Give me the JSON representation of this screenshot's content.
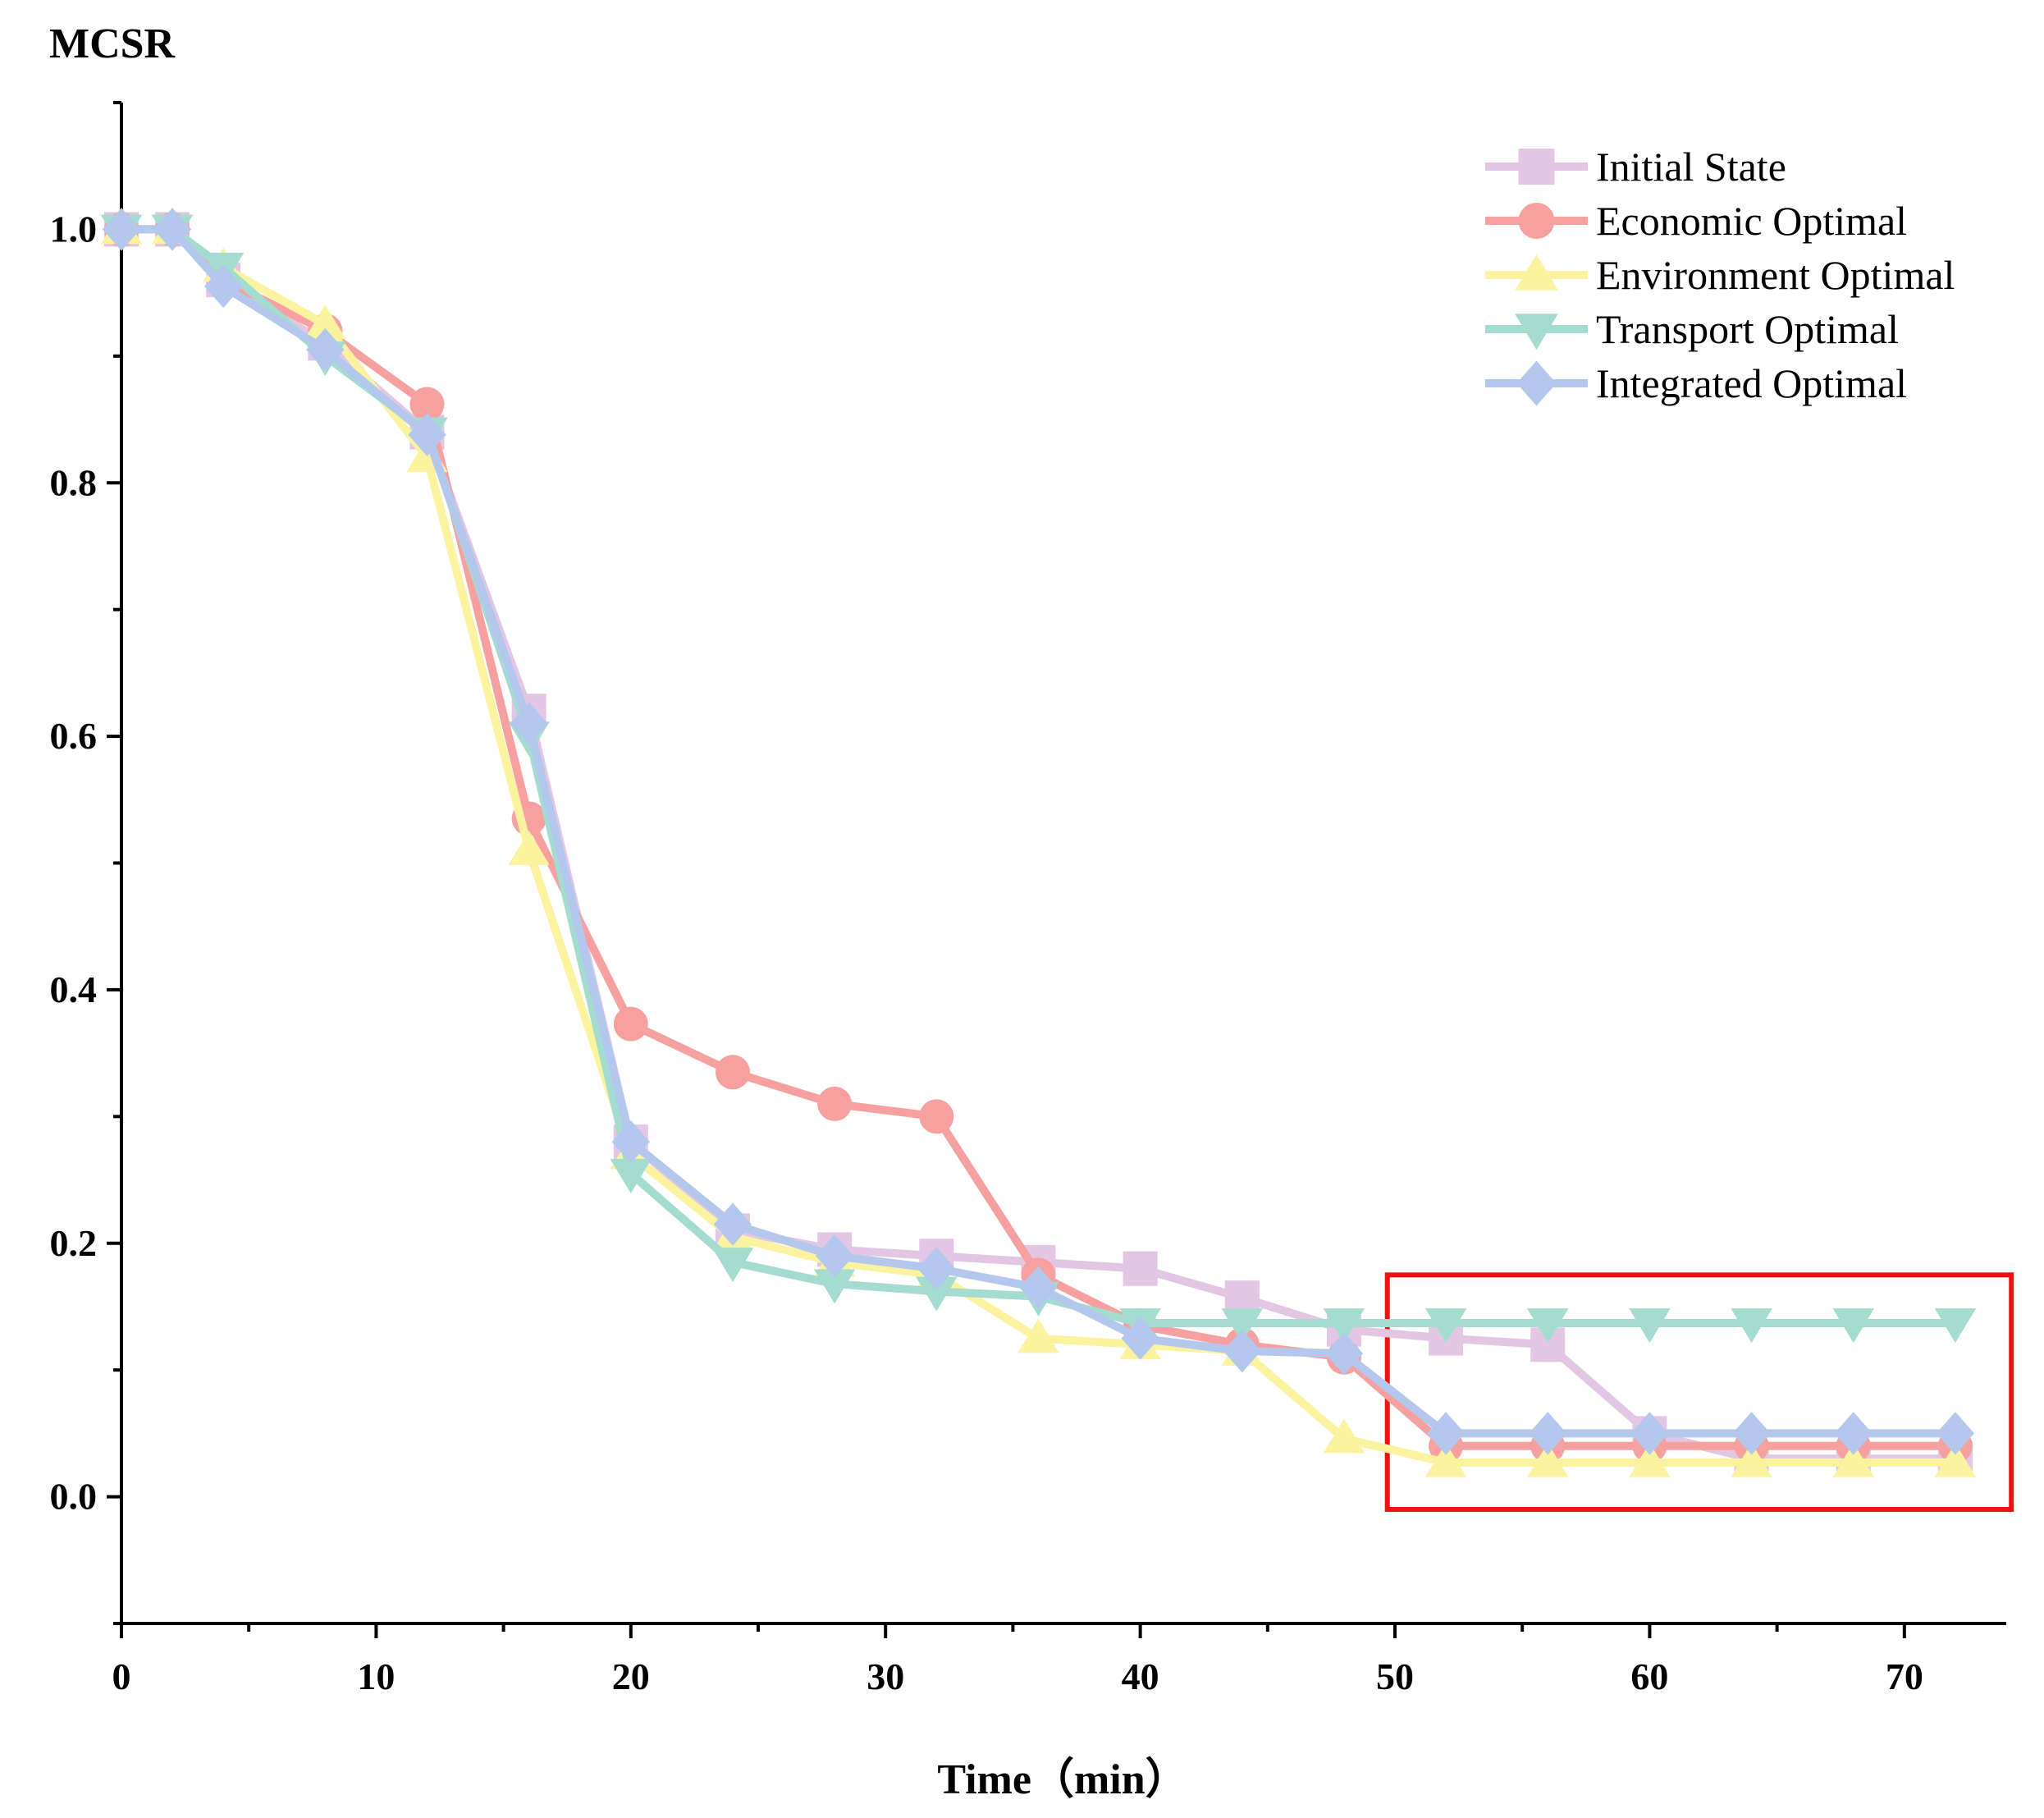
{
  "chart_data": {
    "type": "line",
    "ylabel": "MCSR",
    "xlabel": "Time（min）",
    "xlim": [
      0,
      74
    ],
    "ylim": [
      -0.1,
      1.1
    ],
    "xticks": [
      0,
      10,
      20,
      30,
      40,
      50,
      60,
      70
    ],
    "yticks": [
      0.0,
      0.2,
      0.4,
      0.6,
      0.8,
      1.0
    ],
    "xtick_labels": [
      "0",
      "10",
      "20",
      "30",
      "40",
      "50",
      "60",
      "70"
    ],
    "ytick_labels": [
      "0.0",
      "0.2",
      "0.4",
      "0.6",
      "0.8",
      "1.0"
    ],
    "x": [
      0,
      2,
      4,
      8,
      12,
      16,
      20,
      24,
      28,
      32,
      36,
      40,
      44,
      48,
      52,
      56,
      60,
      64,
      68,
      72
    ],
    "legend_position": "top-right",
    "highlight_box": {
      "x_range": [
        49.7,
        74.2
      ],
      "y_range": [
        -0.01,
        0.175
      ],
      "color": "#ee1111"
    },
    "series": [
      {
        "name": "Initial State",
        "color": "#e3c6e3",
        "marker": "square",
        "values": [
          1.0,
          1.0,
          0.96,
          0.91,
          0.84,
          0.62,
          0.28,
          0.21,
          0.195,
          0.19,
          0.185,
          0.18,
          0.157,
          0.132,
          0.125,
          0.12,
          0.05,
          0.03,
          0.03,
          0.03
        ]
      },
      {
        "name": "Economic Optimal",
        "color": "#f7a0a0",
        "marker": "circle",
        "values": [
          1.0,
          1.0,
          0.96,
          0.92,
          0.862,
          0.535,
          0.373,
          0.335,
          0.31,
          0.3,
          0.175,
          0.135,
          0.12,
          0.11,
          0.04,
          0.04,
          0.04,
          0.04,
          0.04,
          0.04
        ]
      },
      {
        "name": "Environment Optimal",
        "color": "#fbf3a0",
        "marker": "triangle-up",
        "values": [
          1.0,
          1.0,
          0.97,
          0.925,
          0.82,
          0.51,
          0.27,
          0.205,
          0.185,
          0.175,
          0.125,
          0.12,
          0.115,
          0.046,
          0.027,
          0.027,
          0.027,
          0.027,
          0.027,
          0.027
        ]
      },
      {
        "name": "Transport Optimal",
        "color": "#a4dccf",
        "marker": "triangle-down",
        "values": [
          1.0,
          1.0,
          0.97,
          0.9,
          0.84,
          0.6,
          0.255,
          0.185,
          0.168,
          0.162,
          0.158,
          0.137,
          0.137,
          0.137,
          0.137,
          0.137,
          0.137,
          0.137,
          0.137,
          0.137
        ]
      },
      {
        "name": "Integrated Optimal",
        "color": "#b4c8ee",
        "marker": "diamond",
        "values": [
          1.0,
          1.0,
          0.955,
          0.905,
          0.838,
          0.61,
          0.28,
          0.215,
          0.19,
          0.18,
          0.165,
          0.125,
          0.115,
          0.113,
          0.05,
          0.05,
          0.05,
          0.05,
          0.05,
          0.05
        ]
      }
    ]
  }
}
